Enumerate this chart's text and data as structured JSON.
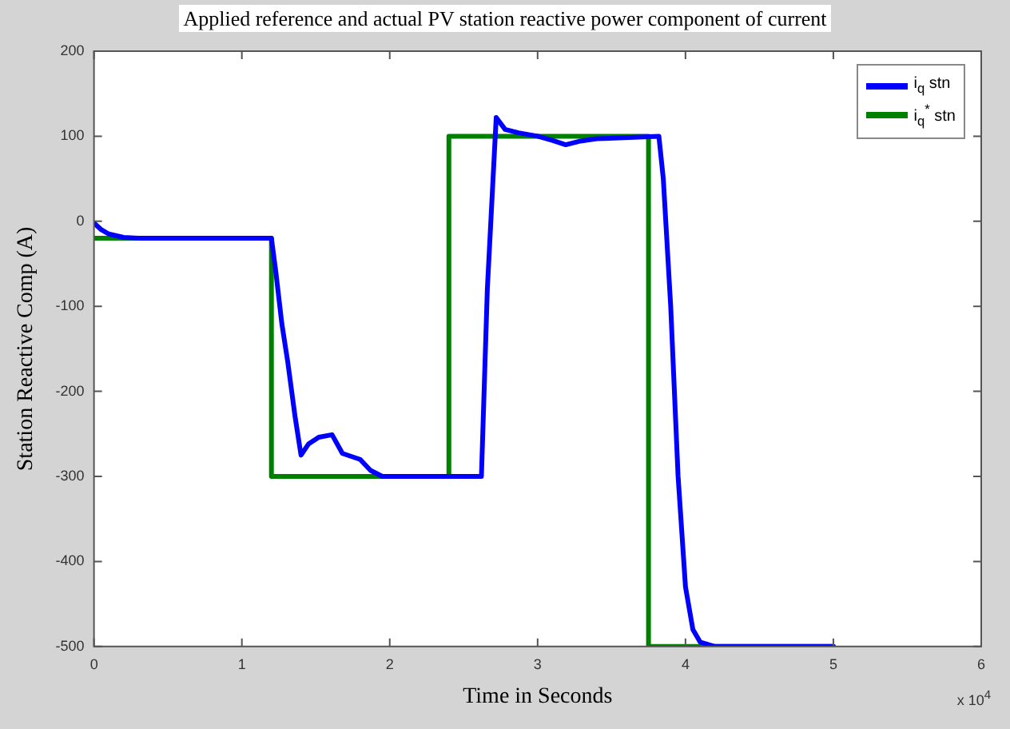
{
  "chart_data": {
    "type": "line",
    "title": "Applied reference and actual PV station reactive power component of current",
    "xlabel": "Time in Seconds",
    "ylabel": "Station Reactive Comp (A)",
    "xlim": [
      0,
      6
    ],
    "xticks": [
      0,
      1,
      2,
      3,
      4,
      5,
      6
    ],
    "ylim": [
      -500,
      200
    ],
    "yticks": [
      -500,
      -400,
      -300,
      -200,
      -100,
      0,
      100,
      200
    ],
    "annotations": [
      "x 10$^{4}$"
    ],
    "legend": "top right",
    "grid": false,
    "marker": "none",
    "line_style": "solid",
    "series": [
      {
        "name": "i$_{q}$ stn",
        "color": "#0000ff",
        "type": "line",
        "x": [
          0,
          0.05,
          0.1,
          0.2,
          0.3,
          1.2,
          1.23,
          1.27,
          1.31,
          1.36,
          1.4,
          1.45,
          1.52,
          1.61,
          1.68,
          1.8,
          1.87,
          1.95,
          2.62,
          2.66,
          2.72,
          2.78,
          2.87,
          3.0,
          3.1,
          3.19,
          3.28,
          3.4,
          3.82,
          3.85,
          3.9,
          3.95,
          4.0,
          4.05,
          4.1,
          4.2,
          5.0
        ],
        "values": [
          -2,
          -10,
          -15,
          -19,
          -20,
          -20,
          -60,
          -120,
          -165,
          -230,
          -275,
          -262,
          -254,
          -251,
          -273,
          -280,
          -293,
          -300,
          -300,
          -80,
          122,
          108,
          104,
          100,
          95,
          90,
          94,
          97,
          100,
          50,
          -100,
          -300,
          -430,
          -480,
          -495,
          -500,
          -500
        ]
      },
      {
        "name": "i$_{q}$$^{*}$ stn",
        "color": "#008000",
        "type": "step",
        "x": [
          0,
          1.2,
          2.4,
          3.75,
          5
        ],
        "values": [
          -20,
          -300,
          100,
          -500,
          -500
        ]
      }
    ]
  }
}
